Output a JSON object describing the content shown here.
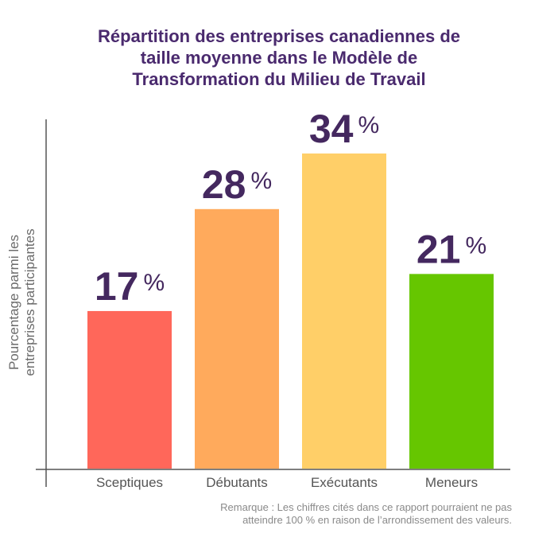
{
  "chart_data": {
    "type": "bar",
    "title_lines": [
      "Répartition des entreprises canadiennes de",
      "taille moyenne dans le Modèle de",
      "Transformation du Milieu de Travail"
    ],
    "ylabel_lines": [
      "Pourcentage parmi les",
      "entreprises participantes"
    ],
    "xlabel": "",
    "categories": [
      "Sceptiques",
      "Débutants",
      "Exécutants",
      "Meneurs"
    ],
    "values": [
      17,
      28,
      34,
      21
    ],
    "value_labels": [
      "17",
      "28",
      "34",
      "21"
    ],
    "unit": "%",
    "colors": [
      "#ff675a",
      "#ffaa5c",
      "#ffcf68",
      "#66c600"
    ],
    "ylim": [
      0,
      40
    ],
    "grid": false,
    "legend": "none"
  },
  "note": {
    "lines": [
      "Remarque : Les chiffres cités dans ce rapport pourraient ne pas",
      "atteindre 100 % en raison de l’arrondissement des valeurs."
    ]
  }
}
